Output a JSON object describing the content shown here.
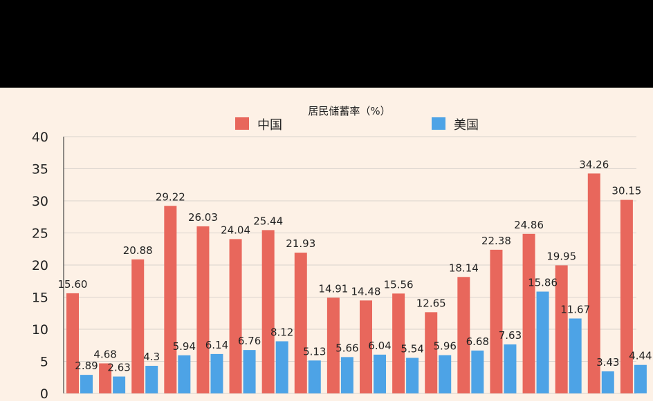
{
  "chart_data": {
    "type": "bar",
    "title": "居民储蓄率（%）",
    "xlabel": "",
    "ylabel": "",
    "ylim": [
      0,
      40
    ],
    "yticks": [
      "0",
      "5",
      "10",
      "15",
      "20",
      "25",
      "30",
      "35",
      "40"
    ],
    "grid": true,
    "legend_position": "top",
    "colors": {
      "china": "#e8675c",
      "usa": "#4da3e6"
    },
    "series": [
      {
        "name": "中国",
        "values": [
          15.6,
          4.68,
          20.88,
          29.22,
          26.03,
          24.04,
          25.44,
          21.93,
          14.91,
          14.48,
          15.56,
          12.65,
          18.14,
          22.38,
          24.86,
          19.95,
          34.26,
          30.15
        ],
        "labels": [
          "15.60",
          "4.68",
          "20.88",
          "29.22",
          "26.03",
          "24.04",
          "25.44",
          "21.93",
          "14.91",
          "14.48",
          "15.56",
          "12.65",
          "18.14",
          "22.38",
          "24.86",
          "19.95",
          "34.26",
          "30.15"
        ]
      },
      {
        "name": "美国",
        "values": [
          2.89,
          2.63,
          4.3,
          5.94,
          6.14,
          6.76,
          8.12,
          5.13,
          5.66,
          6.04,
          5.54,
          5.96,
          6.68,
          7.63,
          15.86,
          11.67,
          3.43,
          4.44
        ],
        "labels": [
          "2.89",
          "2.63",
          "4.3",
          "5.94",
          "6.14",
          "6.76",
          "8.12",
          "5.13",
          "5.66",
          "6.04",
          "5.54",
          "5.96",
          "6.68",
          "7.63",
          "15.86",
          "11.67",
          "3.43",
          "4.44"
        ]
      }
    ]
  }
}
